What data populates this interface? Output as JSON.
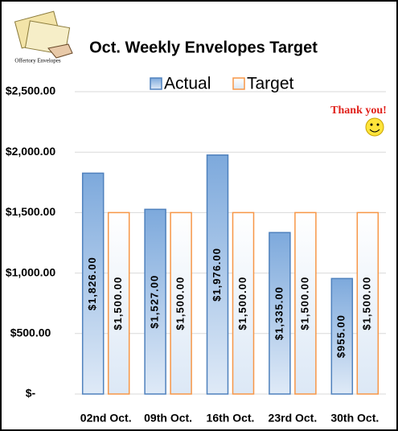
{
  "chart_data": {
    "type": "bar",
    "title": "Oct. Weekly Envelopes Target",
    "icon_label": "Offertory Envelopes",
    "annotation": "Thank you!",
    "categories": [
      "02nd Oct.",
      "09th Oct.",
      "16th Oct.",
      "23rd Oct.",
      "30th Oct."
    ],
    "series": [
      {
        "name": "Actual",
        "color": "#4f81bd",
        "values": [
          1826,
          1527,
          1976,
          1335,
          955
        ],
        "value_labels": [
          "$1,826.00",
          "$1,527.00",
          "$1,976.00",
          "$1,335.00",
          "$955.00"
        ]
      },
      {
        "name": "Target",
        "color": "#f79646",
        "values": [
          1500,
          1500,
          1500,
          1500,
          1500
        ],
        "value_labels": [
          "$1,500.00",
          "$1,500.00",
          "$1,500.00",
          "$1,500.00",
          "$1,500.00"
        ]
      }
    ],
    "ylim": [
      0,
      2500
    ],
    "yticks": [
      {
        "value": 0,
        "label": "$-"
      },
      {
        "value": 500,
        "label": "$500.00"
      },
      {
        "value": 1000,
        "label": "$1,000.00"
      },
      {
        "value": 1500,
        "label": "$1,500.00"
      },
      {
        "value": 2000,
        "label": "$2,000.00"
      },
      {
        "value": 2500,
        "label": "$2,500.00"
      }
    ],
    "grid": true,
    "legend": "top"
  }
}
